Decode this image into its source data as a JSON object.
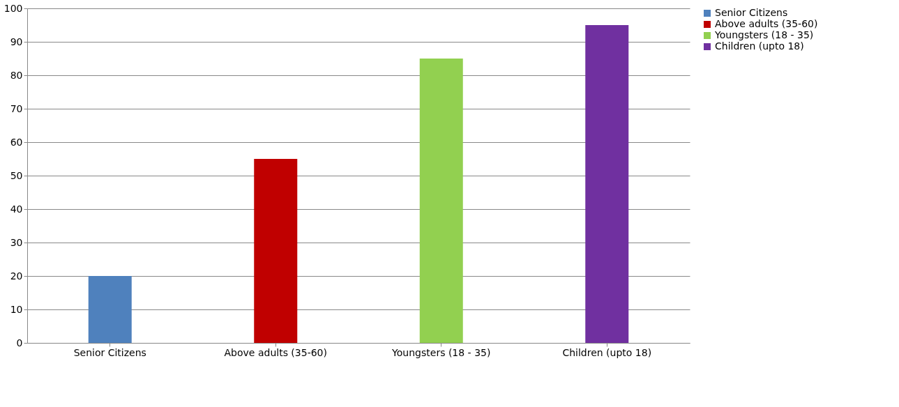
{
  "chart_data": {
    "type": "bar",
    "categories": [
      "Senior Citizens",
      "Above adults (35-60)",
      "Youngsters (18 - 35)",
      "Children (upto 18)"
    ],
    "series": [
      {
        "name": "Senior Citizens",
        "color": "#4f81bd",
        "values": [
          20,
          null,
          null,
          null
        ]
      },
      {
        "name": "Above adults (35-60)",
        "color": "#c00000",
        "values": [
          null,
          55,
          null,
          null
        ]
      },
      {
        "name": "Youngsters (18 - 35)",
        "color": "#92d050",
        "values": [
          null,
          null,
          85,
          null
        ]
      },
      {
        "name": "Children (upto 18)",
        "color": "#7030a0",
        "values": [
          null,
          null,
          null,
          95
        ]
      }
    ],
    "ylim": [
      0,
      100
    ],
    "yticks": [
      0,
      10,
      20,
      30,
      40,
      50,
      60,
      70,
      80,
      90,
      100
    ],
    "grid": "y",
    "legend": "right"
  }
}
